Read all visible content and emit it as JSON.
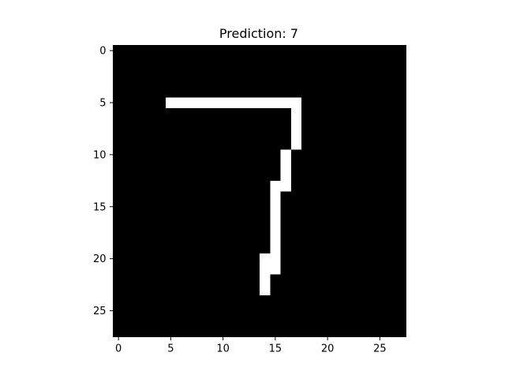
{
  "chart_data": {
    "type": "heatmap",
    "title": "Prediction: 7",
    "xlabel": "",
    "ylabel": "",
    "colormap": "gray",
    "grid_size": [
      28,
      28
    ],
    "xlim": [
      -0.5,
      27.5
    ],
    "ylim": [
      27.5,
      -0.5
    ],
    "xticks": [
      0,
      5,
      10,
      15,
      20,
      25
    ],
    "yticks": [
      0,
      5,
      10,
      15,
      20,
      25
    ],
    "grid": false,
    "background_value": 0,
    "foreground_value": 255,
    "foreground_cells": [
      {
        "row": 5,
        "col_start": 5,
        "col_end": 17
      },
      {
        "row": 6,
        "col_start": 17,
        "col_end": 17
      },
      {
        "row": 7,
        "col_start": 17,
        "col_end": 17
      },
      {
        "row": 8,
        "col_start": 17,
        "col_end": 17
      },
      {
        "row": 9,
        "col_start": 17,
        "col_end": 17
      },
      {
        "row": 10,
        "col_start": 16,
        "col_end": 16
      },
      {
        "row": 11,
        "col_start": 16,
        "col_end": 16
      },
      {
        "row": 12,
        "col_start": 16,
        "col_end": 16
      },
      {
        "row": 13,
        "col_start": 15,
        "col_end": 16
      },
      {
        "row": 14,
        "col_start": 15,
        "col_end": 15
      },
      {
        "row": 15,
        "col_start": 15,
        "col_end": 15
      },
      {
        "row": 16,
        "col_start": 15,
        "col_end": 15
      },
      {
        "row": 17,
        "col_start": 15,
        "col_end": 15
      },
      {
        "row": 18,
        "col_start": 15,
        "col_end": 15
      },
      {
        "row": 19,
        "col_start": 15,
        "col_end": 15
      },
      {
        "row": 20,
        "col_start": 14,
        "col_end": 15
      },
      {
        "row": 21,
        "col_start": 14,
        "col_end": 15
      },
      {
        "row": 22,
        "col_start": 14,
        "col_end": 14
      },
      {
        "row": 23,
        "col_start": 14,
        "col_end": 14
      }
    ],
    "colors": {
      "background": "#000000",
      "foreground": "#ffffff",
      "axis": "#000000"
    }
  }
}
